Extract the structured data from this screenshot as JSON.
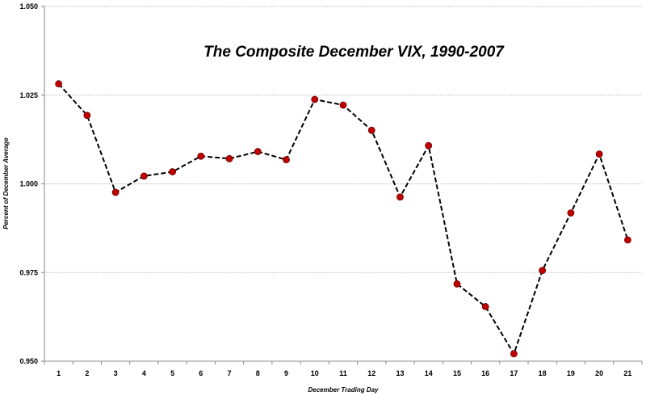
{
  "chart_data": {
    "type": "line",
    "title": "The Composite December VIX, 1990-2007",
    "xlabel": "December Trading Day",
    "ylabel": "Percent of December Average",
    "ylim": [
      0.95,
      1.05
    ],
    "yticks": [
      "0.950",
      "0.975",
      "1.000",
      "1.025",
      "1.050"
    ],
    "categories": [
      "1",
      "2",
      "3",
      "4",
      "5",
      "6",
      "7",
      "8",
      "9",
      "10",
      "11",
      "12",
      "13",
      "14",
      "15",
      "16",
      "17",
      "18",
      "19",
      "20",
      "21"
    ],
    "series": [
      {
        "values": [
          1.0282,
          1.0193,
          0.9976,
          1.0022,
          1.0034,
          1.0078,
          1.0071,
          1.0091,
          1.0068,
          1.0238,
          1.0222,
          1.0151,
          0.9963,
          1.0108,
          0.9718,
          0.9654,
          0.9521,
          0.9756,
          0.9918,
          1.0084,
          0.9842
        ]
      }
    ],
    "grid": true,
    "marker_color": "#c00000",
    "line_color": "#000000"
  }
}
